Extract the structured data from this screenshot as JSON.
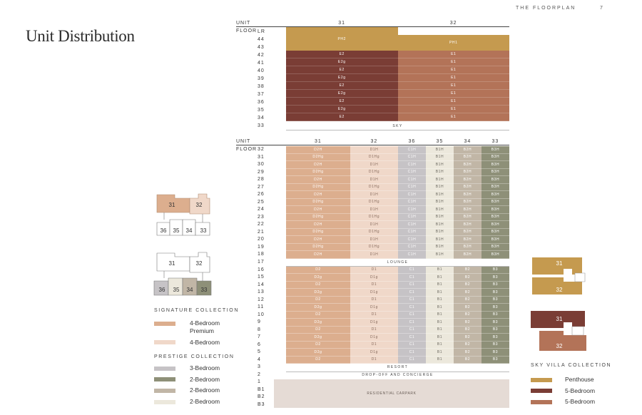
{
  "header": {
    "section": "THE FLOORPLAN",
    "page": "7"
  },
  "title": "Unit Distribution",
  "colors": {
    "penthouse": "#c59a4f",
    "fivebed": "#7a3d35",
    "fivebed_alt": "#b37358",
    "sig_premium": "#dcae8e",
    "sig_4bed": "#f0d8c9",
    "prestige_3bed": "#c6c3c6",
    "prestige_2bed_dark": "#8e9078",
    "prestige_2bed_mid": "#c1b6a6",
    "prestige_2bed_light": "#ece8dc",
    "carpark": "#e5dbd5"
  },
  "top_table": {
    "unit_label": "UNIT",
    "floor_label": "FLOOR",
    "units": [
      "31",
      "32"
    ],
    "floors": [
      "LR",
      "44",
      "43",
      "42",
      "41",
      "40",
      "39",
      "38",
      "37",
      "36",
      "35",
      "34",
      "33"
    ],
    "penthouse": [
      "PH2",
      "PH1"
    ],
    "rows": [
      [
        "E2",
        "E1"
      ],
      [
        "E2g",
        "E1"
      ],
      [
        "E2",
        "E1"
      ],
      [
        "E2g",
        "E1"
      ],
      [
        "E2",
        "E1"
      ],
      [
        "E2g",
        "E1"
      ],
      [
        "E2",
        "E1"
      ],
      [
        "E2g",
        "E1"
      ],
      [
        "E2",
        "E1"
      ]
    ],
    "sky_label": "SKY"
  },
  "bottom_table": {
    "unit_label": "UNIT",
    "floor_label": "FLOOR",
    "units": [
      "31",
      "32",
      "36",
      "35",
      "34",
      "33"
    ],
    "upper_floors": [
      "32",
      "31",
      "30",
      "29",
      "28",
      "27",
      "26",
      "25",
      "24",
      "23",
      "22",
      "21",
      "20",
      "19",
      "18"
    ],
    "upper_codes": [
      [
        "D2H",
        "D1H",
        "C1H",
        "B1H",
        "B2H",
        "B3H"
      ],
      [
        "D2Hg",
        "D1Hg",
        "C1H",
        "B1H",
        "B2H",
        "B3H"
      ]
    ],
    "lounge_floor": "17",
    "lounge_label": "LOUNGE",
    "lower_floors": [
      "16",
      "15",
      "14",
      "13",
      "12",
      "11",
      "10",
      "9",
      "8",
      "7",
      "6",
      "5",
      "4"
    ],
    "lower_codes": [
      [
        "D2",
        "D1",
        "C1",
        "B1",
        "B2",
        "B3"
      ],
      [
        "D2g",
        "D1g",
        "C1",
        "B1",
        "B2",
        "B3"
      ]
    ],
    "resort_floor": "3",
    "resort_label": "RESORT",
    "dropoff_floor": "2",
    "dropoff_label": "DROP-OFF AND CONCIERGE",
    "carpark_floors": [
      "1",
      "B1",
      "B2",
      "B3"
    ],
    "carpark_label": "RESIDENTIAL CARPARK"
  },
  "left_legend": {
    "signature_head": "SIGNATURE COLLECTION",
    "signature": [
      {
        "label": "4-Bedroom\nPremium",
        "color": "#dcae8e"
      },
      {
        "label": "4-Bedroom",
        "color": "#f0d8c9"
      }
    ],
    "prestige_head": "PRESTIGE COLLECTION",
    "prestige": [
      {
        "label": "3-Bedroom",
        "color": "#c6c3c6"
      },
      {
        "label": "2-Bedroom",
        "color": "#8e9078"
      },
      {
        "label": "2-Bedroom",
        "color": "#c1b6a6"
      },
      {
        "label": "2-Bedroom",
        "color": "#ece8dc"
      }
    ]
  },
  "right_legend": {
    "head": "SKY VILLA COLLECTION",
    "items": [
      {
        "label": "Penthouse",
        "color": "#c59a4f"
      },
      {
        "label": "5-Bedroom",
        "color": "#7a3d35"
      },
      {
        "label": "5-Bedroom",
        "color": "#b37358"
      }
    ]
  },
  "key_plans": {
    "signature": [
      "31",
      "32",
      "36",
      "35",
      "34",
      "33"
    ],
    "prestige": [
      "31",
      "32",
      "36",
      "35",
      "34",
      "33"
    ],
    "villa_upper": [
      "31",
      "32"
    ],
    "villa_lower": [
      "31",
      "32"
    ]
  }
}
